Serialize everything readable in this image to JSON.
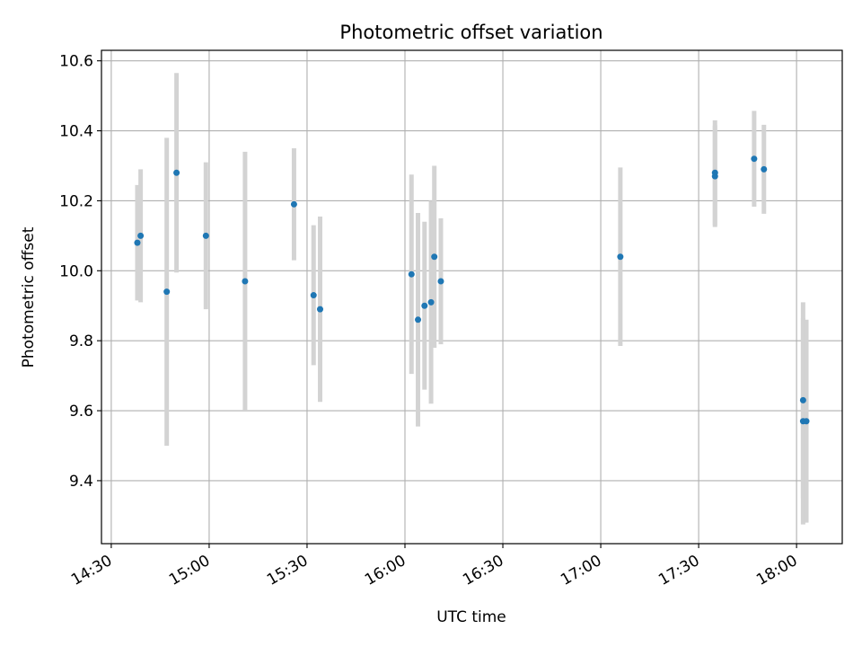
{
  "chart_data": {
    "type": "scatter",
    "title": "Photometric offset variation",
    "xlabel": "UTC time",
    "ylabel": "Photometric offset",
    "x_unit": "hh:mm UTC",
    "xlim": [
      "14:27",
      "18:14"
    ],
    "ylim": [
      9.22,
      10.63
    ],
    "x_ticks": [
      "14:30",
      "15:00",
      "15:30",
      "16:00",
      "16:30",
      "17:00",
      "17:30",
      "18:00"
    ],
    "y_ticks": [
      9.4,
      9.6,
      9.8,
      10.0,
      10.2,
      10.4,
      10.6
    ],
    "y_tick_labels": [
      "9.4",
      "9.6",
      "9.8",
      "10.0",
      "10.2",
      "10.4",
      "10.6"
    ],
    "grid": true,
    "colors": {
      "point": "#1f77b4",
      "errorbar": "#d3d3d3",
      "grid": "#b0b0b0"
    },
    "series": [
      {
        "errorbars": true,
        "points": [
          {
            "x": "14:38",
            "y": 10.08,
            "err": 0.165
          },
          {
            "x": "14:39",
            "y": 10.1,
            "err": 0.19
          },
          {
            "x": "14:47",
            "y": 9.94,
            "err": 0.44
          },
          {
            "x": "14:50",
            "y": 10.28,
            "err": 0.285
          },
          {
            "x": "14:59",
            "y": 10.1,
            "err": 0.21
          },
          {
            "x": "15:11",
            "y": 9.97,
            "err": 0.37
          },
          {
            "x": "15:26",
            "y": 10.19,
            "err": 0.16
          },
          {
            "x": "15:32",
            "y": 9.93,
            "err": 0.2
          },
          {
            "x": "15:34",
            "y": 9.89,
            "err": 0.265
          },
          {
            "x": "16:02",
            "y": 9.99,
            "err": 0.285
          },
          {
            "x": "16:04",
            "y": 9.86,
            "err": 0.305
          },
          {
            "x": "16:06",
            "y": 9.9,
            "err": 0.24
          },
          {
            "x": "16:08",
            "y": 9.91,
            "err": 0.29
          },
          {
            "x": "16:09",
            "y": 10.04,
            "err": 0.26
          },
          {
            "x": "16:11",
            "y": 9.97,
            "err": 0.18
          },
          {
            "x": "17:06",
            "y": 10.04,
            "err": 0.255
          },
          {
            "x": "17:35",
            "y": 10.27,
            "err": 0.145
          },
          {
            "x": "17:35",
            "y": 10.28,
            "err": 0.15
          },
          {
            "x": "17:47",
            "y": 10.32,
            "err": 0.137
          },
          {
            "x": "17:50",
            "y": 10.29,
            "err": 0.127
          },
          {
            "x": "18:02",
            "y": 9.57,
            "err": 0.295
          },
          {
            "x": "18:02",
            "y": 9.63,
            "err": 0.28
          },
          {
            "x": "18:03",
            "y": 9.57,
            "err": 0.29
          }
        ]
      }
    ]
  }
}
